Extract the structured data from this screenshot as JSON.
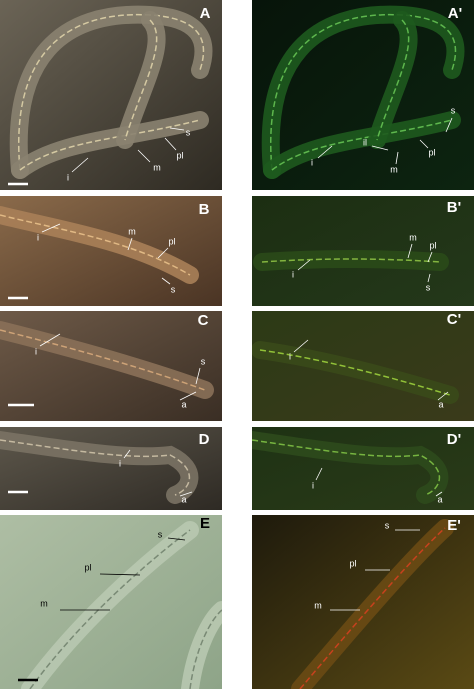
{
  "panels": [
    {
      "label": "A",
      "annotations": [
        "i",
        "m",
        "pl",
        "s"
      ]
    },
    {
      "label": "A'",
      "annotations": [
        "i",
        "il",
        "m",
        "pl",
        "s"
      ]
    },
    {
      "label": "B",
      "annotations": [
        "i",
        "m",
        "pl",
        "s"
      ]
    },
    {
      "label": "B'",
      "annotations": [
        "i",
        "m",
        "pl",
        "s"
      ]
    },
    {
      "label": "C",
      "annotations": [
        "i",
        "s",
        "a"
      ]
    },
    {
      "label": "C'",
      "annotations": [
        "i",
        "a"
      ]
    },
    {
      "label": "D",
      "annotations": [
        "i",
        "a"
      ]
    },
    {
      "label": "D'",
      "annotations": [
        "i",
        "a"
      ]
    },
    {
      "label": "E",
      "annotations": [
        "s",
        "pl",
        "m"
      ]
    },
    {
      "label": "E'",
      "annotations": [
        "s",
        "pl",
        "m"
      ]
    }
  ]
}
